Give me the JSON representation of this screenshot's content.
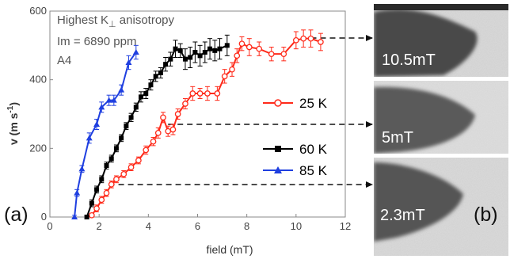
{
  "chart_data": {
    "type": "line",
    "annotations": {
      "line1_main": "Highest K",
      "line1_sub": "⊥",
      "line1_end": " anisotropy",
      "line2": "Im = 6890 ppm",
      "line3": "A4"
    },
    "xlabel": "field (mT)",
    "ylabel": "v (m s",
    "ylabel_sup": "-1",
    "ylabel_close": ")",
    "xlim": [
      0,
      12
    ],
    "ylim": [
      0,
      600
    ],
    "xticks": [
      "0",
      "2",
      "4",
      "6",
      "8",
      "10",
      "12"
    ],
    "yticks": [
      "0",
      "200",
      "400",
      "600"
    ],
    "panel_a": "(a)",
    "panel_b": "(b)",
    "series": [
      {
        "name": "25 K",
        "color": "#ff2a1a",
        "marker": "open-circle",
        "x": [
          1.7,
          1.9,
          2.1,
          2.3,
          2.5,
          2.7,
          3.0,
          3.3,
          3.6,
          3.9,
          4.2,
          4.4,
          4.6,
          4.8,
          5.0,
          5.2,
          5.5,
          5.8,
          6.1,
          6.4,
          6.8,
          7.1,
          7.4,
          7.6,
          7.8,
          8.1,
          8.5,
          9.0,
          9.5,
          10.0,
          10.3,
          10.6,
          11.0
        ],
        "y": [
          5,
          25,
          50,
          70,
          95,
          110,
          125,
          145,
          165,
          195,
          220,
          245,
          290,
          250,
          255,
          300,
          330,
          360,
          360,
          360,
          360,
          410,
          430,
          470,
          505,
          495,
          490,
          475,
          475,
          515,
          520,
          520,
          510
        ],
        "err": [
          5,
          10,
          10,
          10,
          10,
          10,
          10,
          10,
          10,
          12,
          12,
          15,
          15,
          15,
          15,
          15,
          15,
          20,
          15,
          20,
          20,
          20,
          20,
          20,
          20,
          25,
          20,
          20,
          20,
          25,
          25,
          25,
          25
        ]
      },
      {
        "name": "60 K",
        "color": "#000000",
        "marker": "filled-square",
        "x": [
          1.5,
          1.7,
          1.9,
          2.1,
          2.3,
          2.5,
          2.7,
          2.9,
          3.1,
          3.3,
          3.5,
          3.7,
          3.9,
          4.1,
          4.3,
          4.5,
          4.7,
          4.9,
          5.1,
          5.3,
          5.5,
          5.7,
          5.9,
          6.1,
          6.3,
          6.5,
          6.7,
          6.9,
          7.2
        ],
        "y": [
          0,
          40,
          80,
          110,
          150,
          170,
          200,
          230,
          265,
          290,
          320,
          350,
          360,
          385,
          410,
          420,
          445,
          460,
          490,
          485,
          460,
          465,
          480,
          470,
          480,
          490,
          485,
          490,
          500
        ],
        "err": [
          5,
          10,
          10,
          10,
          10,
          10,
          10,
          10,
          10,
          12,
          12,
          15,
          15,
          15,
          15,
          15,
          20,
          20,
          25,
          20,
          30,
          30,
          30,
          30,
          30,
          30,
          30,
          30,
          30
        ]
      },
      {
        "name": "85 K",
        "color": "#1f3fe0",
        "marker": "filled-triangle",
        "x": [
          1.0,
          1.1,
          1.3,
          1.6,
          1.9,
          2.1,
          2.4,
          2.6,
          2.9,
          3.2,
          3.5
        ],
        "y": [
          0,
          70,
          140,
          230,
          270,
          320,
          340,
          340,
          370,
          450,
          480
        ],
        "err": [
          5,
          10,
          10,
          15,
          15,
          15,
          15,
          15,
          15,
          20,
          20
        ]
      }
    ],
    "arrows": [
      {
        "from_x": 2.4,
        "from_y": 95
      },
      {
        "from_x": 4.8,
        "from_y": 272
      },
      {
        "from_x": 10.6,
        "from_y": 520
      }
    ],
    "images": [
      {
        "label": "10.5mT"
      },
      {
        "label": "5mT"
      },
      {
        "label": "2.3mT"
      }
    ]
  }
}
